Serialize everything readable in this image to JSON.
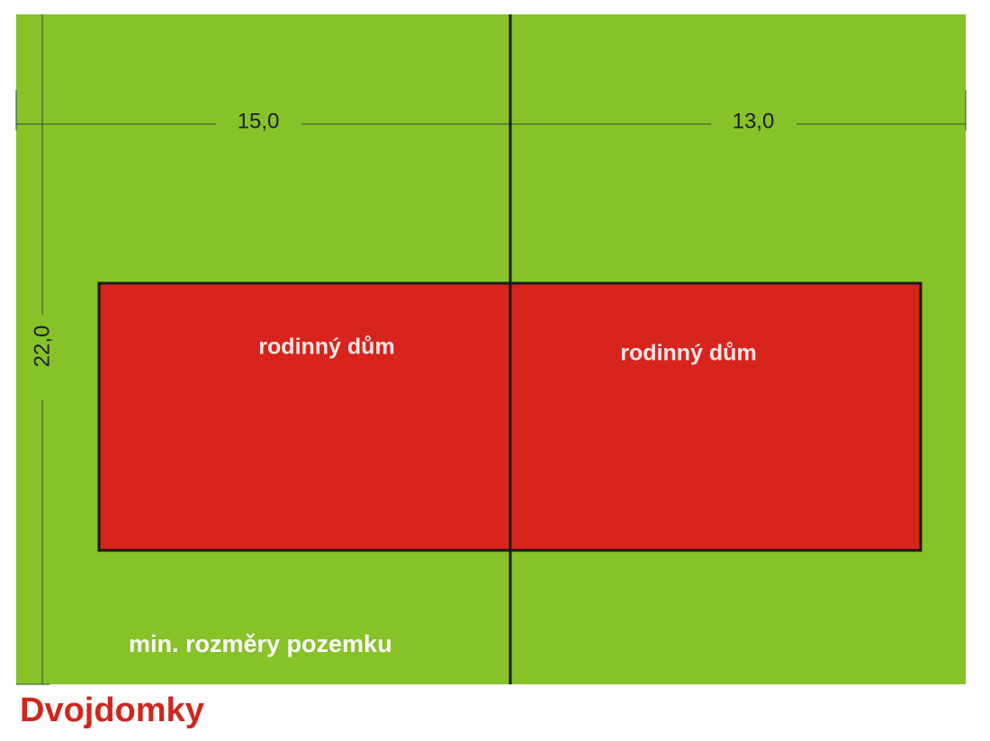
{
  "title": "Dvojdomky",
  "caption": "min. rozměry pozemku",
  "dimensions": {
    "width_left": "15,0",
    "width_right": "13,0",
    "depth": "22,0"
  },
  "houses": [
    {
      "label": "rodinný dům"
    },
    {
      "label": "rodinný dům"
    }
  ]
}
